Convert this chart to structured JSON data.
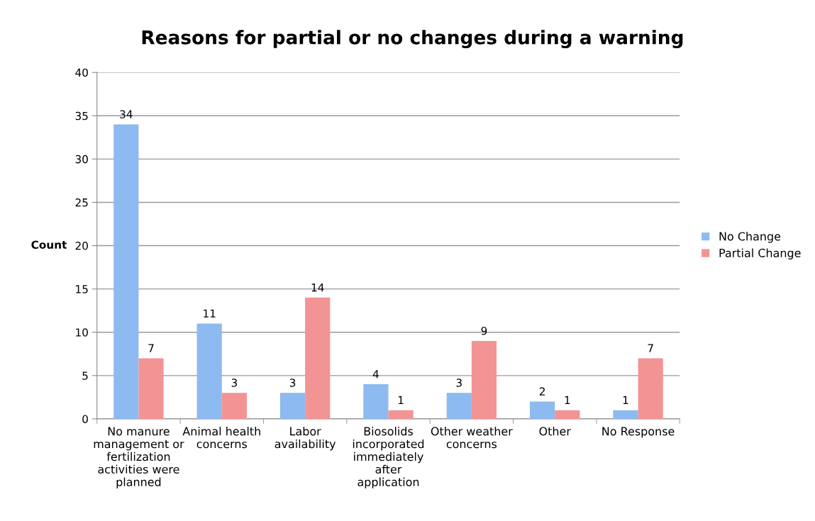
{
  "chart_data": {
    "type": "bar",
    "title": "Reasons for partial or no changes during a warning",
    "ylabel": "Count",
    "categories": [
      "No manure management or fertilization activities were planned",
      "Animal health concerns",
      "Labor availability",
      "Biosolids incorporated immediately after application",
      "Other weather concerns",
      "Other",
      "No Response"
    ],
    "series": [
      {
        "name": "No Change",
        "color": "#8dbaf0",
        "values": [
          34,
          11,
          3,
          4,
          3,
          2,
          1
        ]
      },
      {
        "name": "Partial Change",
        "color": "#f29494",
        "values": [
          7,
          3,
          14,
          1,
          9,
          1,
          7
        ]
      }
    ],
    "ylim": [
      0,
      40
    ],
    "yticks": [
      0,
      5,
      10,
      15,
      20,
      25,
      30,
      35,
      40
    ],
    "grid": "y",
    "legend": "right",
    "data_labels": true
  }
}
